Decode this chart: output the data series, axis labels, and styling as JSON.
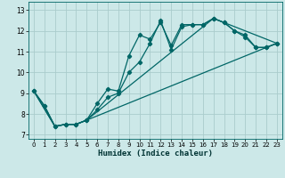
{
  "xlabel": "Humidex (Indice chaleur)",
  "background_color": "#cce8e8",
  "grid_color": "#aacccc",
  "line_color": "#006666",
  "xlim": [
    -0.5,
    23.5
  ],
  "ylim": [
    6.8,
    13.4
  ],
  "xticks": [
    0,
    1,
    2,
    3,
    4,
    5,
    6,
    7,
    8,
    9,
    10,
    11,
    12,
    13,
    14,
    15,
    16,
    17,
    18,
    19,
    20,
    21,
    22,
    23
  ],
  "yticks": [
    7,
    8,
    9,
    10,
    11,
    12,
    13
  ],
  "line1_x": [
    0,
    1,
    2,
    3,
    4,
    5,
    6,
    7,
    8,
    9,
    10,
    11,
    12,
    13,
    14,
    15,
    16,
    17,
    18,
    19,
    20,
    21,
    22,
    23
  ],
  "line1_y": [
    9.1,
    8.4,
    7.4,
    7.5,
    7.5,
    7.7,
    8.5,
    9.2,
    9.1,
    10.8,
    11.8,
    11.6,
    12.4,
    11.3,
    12.3,
    12.3,
    12.3,
    12.6,
    12.4,
    12.0,
    11.8,
    11.2,
    11.2,
    11.4
  ],
  "line2_x": [
    0,
    1,
    2,
    3,
    4,
    5,
    6,
    7,
    8,
    9,
    10,
    11,
    12,
    13,
    14,
    15,
    16,
    17,
    18,
    19,
    20,
    21,
    22,
    23
  ],
  "line2_y": [
    9.1,
    8.4,
    7.4,
    7.5,
    7.5,
    7.7,
    8.2,
    8.8,
    9.0,
    10.0,
    10.5,
    11.4,
    12.5,
    11.1,
    12.2,
    12.3,
    12.3,
    12.6,
    12.4,
    12.0,
    11.7,
    11.2,
    11.2,
    11.4
  ],
  "line3_x": [
    0,
    2,
    3,
    4,
    5,
    22,
    23
  ],
  "line3_y": [
    9.1,
    7.4,
    7.5,
    7.5,
    7.7,
    11.2,
    11.4
  ],
  "line4_x": [
    0,
    2,
    3,
    4,
    5,
    17,
    23
  ],
  "line4_y": [
    9.1,
    7.4,
    7.5,
    7.5,
    7.7,
    12.6,
    11.4
  ]
}
